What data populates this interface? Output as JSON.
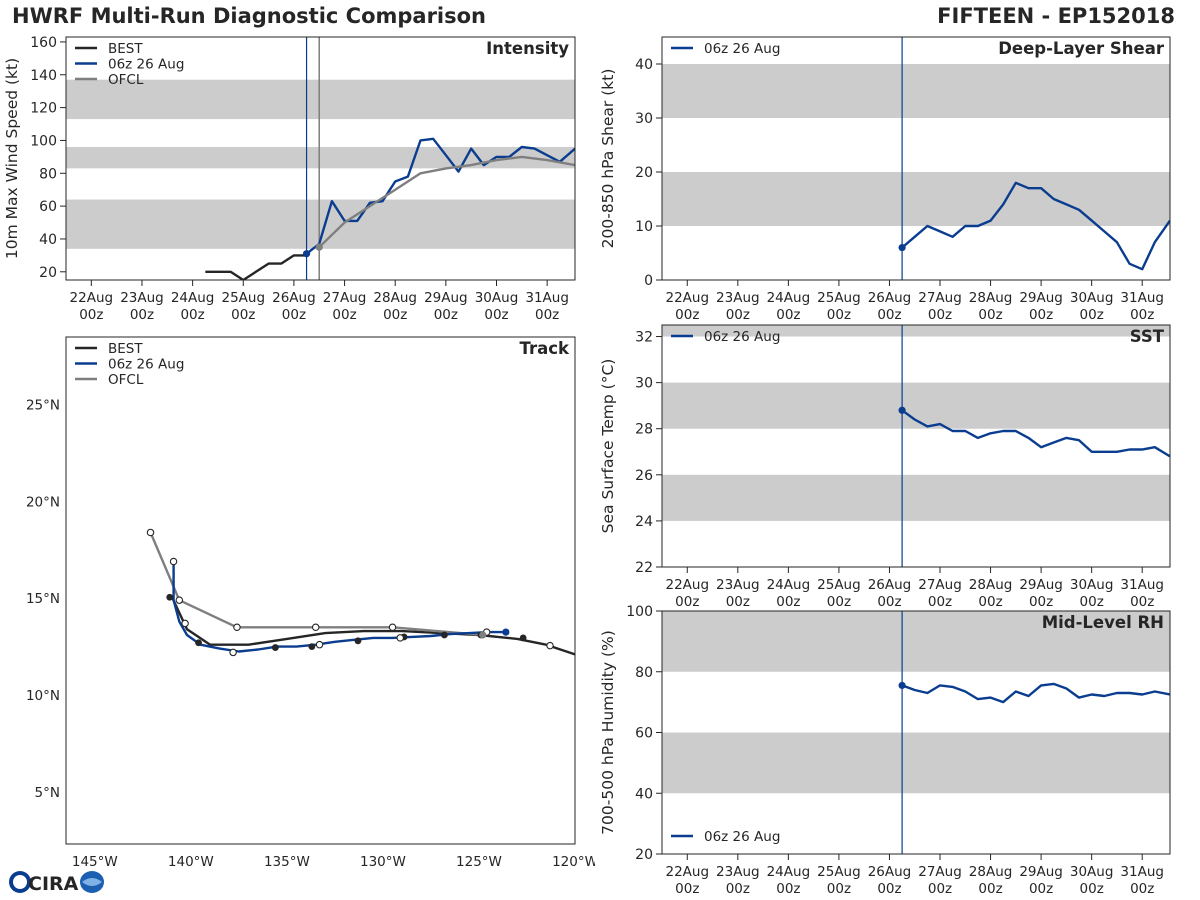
{
  "titles": {
    "left": "HWRF Multi-Run Diagnostic Comparison",
    "right": "FIFTEEN - EP152018"
  },
  "colors": {
    "best": "#262626",
    "hwrf": "#0a3d8f",
    "ofcl": "#7f7f7f",
    "band": "#cccccc",
    "init_line": "#0a3d8f"
  },
  "logo": {
    "text": "CIRA"
  },
  "chart_data": [
    {
      "id": "intensity",
      "type": "line",
      "title": "Intensity",
      "ylabel": "10m Max Wind Speed (kt)",
      "xlim": [
        -0.5,
        9.55
      ],
      "ylim": [
        15,
        163
      ],
      "yticks": [
        20,
        40,
        60,
        80,
        100,
        120,
        140,
        160
      ],
      "xticks": [
        0,
        1,
        2,
        3,
        4,
        5,
        6,
        7,
        8,
        9
      ],
      "xtick_labels": [
        "22Aug",
        "23Aug",
        "24Aug",
        "25Aug",
        "26Aug",
        "27Aug",
        "28Aug",
        "29Aug",
        "30Aug",
        "31Aug"
      ],
      "xtick_sublabel": "00z",
      "bands": [
        [
          34,
          64
        ],
        [
          83,
          96
        ],
        [
          113,
          137
        ]
      ],
      "init_day": 4.25,
      "ofcl_start": 4.5,
      "legend": [
        "BEST",
        "06z 26 Aug",
        "OFCL"
      ],
      "series": [
        {
          "name": "BEST",
          "x": [
            2.25,
            2.5,
            2.75,
            3.0,
            3.25,
            3.5,
            3.75,
            4.0,
            4.25
          ],
          "y": [
            20,
            20,
            20,
            15,
            20,
            25,
            25,
            30,
            30
          ]
        },
        {
          "name": "06z 26 Aug",
          "marker_first": true,
          "x": [
            4.25,
            4.5,
            4.75,
            5.0,
            5.25,
            5.5,
            5.75,
            6.0,
            6.25,
            6.5,
            6.75,
            7.0,
            7.25,
            7.5,
            7.75,
            8.0,
            8.25,
            8.5,
            8.75,
            9.0,
            9.25,
            9.55
          ],
          "y": [
            31,
            37,
            63,
            51,
            51,
            62,
            63,
            75,
            78,
            100,
            101,
            91,
            81,
            95,
            85,
            90,
            90,
            96,
            95,
            91,
            87,
            95
          ]
        },
        {
          "name": "OFCL",
          "marker_first": true,
          "x": [
            4.5,
            5.0,
            5.5,
            6.0,
            6.5,
            7.0,
            7.5,
            8.0,
            8.5,
            9.0,
            9.55
          ],
          "y": [
            35,
            50,
            60,
            70,
            80,
            83,
            85,
            88,
            90,
            88,
            85
          ]
        }
      ]
    },
    {
      "id": "shear",
      "type": "line",
      "title": "Deep-Layer Shear",
      "ylabel": "200-850 hPa Shear (kt)",
      "xlim": [
        -0.5,
        9.55
      ],
      "ylim": [
        0,
        45
      ],
      "yticks": [
        0,
        10,
        20,
        30,
        40
      ],
      "xticks": [
        0,
        1,
        2,
        3,
        4,
        5,
        6,
        7,
        8,
        9
      ],
      "xtick_labels": [
        "22Aug",
        "23Aug",
        "24Aug",
        "25Aug",
        "26Aug",
        "27Aug",
        "28Aug",
        "29Aug",
        "30Aug",
        "31Aug"
      ],
      "xtick_sublabel": "00z",
      "bands": [
        [
          10,
          20
        ],
        [
          30,
          40
        ]
      ],
      "init_day": 4.25,
      "legend": [
        "06z 26 Aug"
      ],
      "series": [
        {
          "name": "06z 26 Aug",
          "marker_first": true,
          "x": [
            4.25,
            4.5,
            4.75,
            5.0,
            5.25,
            5.5,
            5.75,
            6.0,
            6.25,
            6.5,
            6.75,
            7.0,
            7.25,
            7.5,
            7.75,
            8.0,
            8.25,
            8.5,
            8.75,
            9.0,
            9.25,
            9.55
          ],
          "y": [
            6,
            8,
            10,
            9,
            8,
            10,
            10,
            11,
            14,
            18,
            17,
            17,
            15,
            14,
            13,
            11,
            9,
            7,
            3,
            2,
            7,
            11
          ]
        }
      ]
    },
    {
      "id": "sst",
      "type": "line",
      "title": "SST",
      "ylabel": "Sea Surface Temp (°C)",
      "xlim": [
        -0.5,
        9.55
      ],
      "ylim": [
        22,
        32.5
      ],
      "yticks": [
        22,
        24,
        26,
        28,
        30,
        32
      ],
      "xticks": [
        0,
        1,
        2,
        3,
        4,
        5,
        6,
        7,
        8,
        9
      ],
      "xtick_labels": [
        "22Aug",
        "23Aug",
        "24Aug",
        "25Aug",
        "26Aug",
        "27Aug",
        "28Aug",
        "29Aug",
        "30Aug",
        "31Aug"
      ],
      "xtick_sublabel": "00z",
      "bands": [
        [
          24,
          26
        ],
        [
          28,
          30
        ],
        [
          32,
          34
        ]
      ],
      "init_day": 4.25,
      "legend": [
        "06z 26 Aug"
      ],
      "series": [
        {
          "name": "06z 26 Aug",
          "marker_first": true,
          "x": [
            4.25,
            4.5,
            4.75,
            5.0,
            5.25,
            5.5,
            5.75,
            6.0,
            6.25,
            6.5,
            6.75,
            7.0,
            7.25,
            7.5,
            7.75,
            8.0,
            8.25,
            8.5,
            8.75,
            9.0,
            9.25,
            9.55
          ],
          "y": [
            28.8,
            28.4,
            28.1,
            28.2,
            27.9,
            27.9,
            27.6,
            27.8,
            27.9,
            27.9,
            27.6,
            27.2,
            27.4,
            27.6,
            27.5,
            27.0,
            27.0,
            27.0,
            27.1,
            27.1,
            27.2,
            26.8
          ]
        }
      ]
    },
    {
      "id": "rh",
      "type": "line",
      "title": "Mid-Level RH",
      "ylabel": "700-500 hPa Humidity (%)",
      "xlim": [
        -0.5,
        9.55
      ],
      "ylim": [
        20,
        100
      ],
      "yticks": [
        20,
        40,
        60,
        80,
        100
      ],
      "xticks": [
        0,
        1,
        2,
        3,
        4,
        5,
        6,
        7,
        8,
        9
      ],
      "xtick_labels": [
        "22Aug",
        "23Aug",
        "24Aug",
        "25Aug",
        "26Aug",
        "27Aug",
        "28Aug",
        "29Aug",
        "30Aug",
        "31Aug"
      ],
      "xtick_sublabel": "00z",
      "bands": [
        [
          40,
          60
        ],
        [
          80,
          100
        ]
      ],
      "init_day": 4.25,
      "legend": [
        "06z 26 Aug"
      ],
      "legend_position": "bottom-left",
      "series": [
        {
          "name": "06z 26 Aug",
          "marker_first": true,
          "x": [
            4.25,
            4.5,
            4.75,
            5.0,
            5.25,
            5.5,
            5.75,
            6.0,
            6.25,
            6.5,
            6.75,
            7.0,
            7.25,
            7.5,
            7.75,
            8.0,
            8.25,
            8.5,
            8.75,
            9.0,
            9.25,
            9.55
          ],
          "y": [
            75.5,
            74,
            73,
            75.5,
            75,
            73.5,
            71,
            71.5,
            70,
            73.5,
            72,
            75.5,
            76,
            74.5,
            71.5,
            72.5,
            72,
            73,
            73,
            72.5,
            73.5,
            72.5
          ]
        }
      ]
    },
    {
      "id": "track",
      "type": "scatter",
      "title": "Track",
      "xlabel_unit": "W",
      "ylabel_unit": "N",
      "xlim": [
        -146.5,
        -120
      ],
      "ylim": [
        2.3,
        28.5
      ],
      "xticks": [
        -145,
        -140,
        -135,
        -130,
        -125,
        -120
      ],
      "xtick_labels": [
        "145°W",
        "140°W",
        "135°W",
        "130°W",
        "125°W",
        "120°W"
      ],
      "yticks": [
        5,
        10,
        15,
        20,
        25
      ],
      "ytick_labels": [
        "5°N",
        "10°N",
        "15°N",
        "20°N",
        "25°N"
      ],
      "legend": [
        "BEST",
        "06z 26 Aug",
        "OFCL"
      ],
      "series": [
        {
          "name": "BEST",
          "lon": [
            -120,
            -121.5,
            -123,
            -125,
            -127,
            -129,
            -131,
            -133,
            -135,
            -137,
            -139,
            -140.2,
            -141.0
          ],
          "lat": [
            12.1,
            12.6,
            12.9,
            13.1,
            13.2,
            13.3,
            13.3,
            13.2,
            12.9,
            12.6,
            12.6,
            13.4,
            15.1
          ],
          "dots_black": [
            [
              -122.7,
              12.95
            ],
            [
              -124.9,
              13.1
            ],
            [
              -126.8,
              13.1
            ],
            [
              -128.9,
              13.0
            ],
            [
              -131.3,
              12.8
            ],
            [
              -133.7,
              12.5
            ],
            [
              -135.6,
              12.45
            ],
            [
              -139.6,
              12.7
            ],
            [
              -141.1,
              15.05
            ]
          ],
          "dots_open": [
            [
              -121.3,
              12.55
            ]
          ]
        },
        {
          "name": "06z 26 Aug",
          "lon": [
            -123.6,
            -124.5,
            -125.5,
            -126.5,
            -127.5,
            -128.5,
            -129.5,
            -130.5,
            -131.5,
            -132.5,
            -133.5,
            -134.5,
            -135.5,
            -136.5,
            -137.5,
            -138.5,
            -139.5,
            -140.2,
            -140.6,
            -140.9,
            -140.9
          ],
          "lat": [
            13.25,
            13.25,
            13.2,
            13.15,
            13.05,
            13.0,
            12.95,
            12.95,
            12.85,
            12.75,
            12.6,
            12.5,
            12.5,
            12.35,
            12.25,
            12.4,
            12.6,
            13.1,
            13.8,
            14.9,
            16.9
          ],
          "dots_open": [
            [
              -124.6,
              13.25
            ],
            [
              -129.1,
              12.95
            ],
            [
              -133.3,
              12.6
            ],
            [
              -137.8,
              12.2
            ],
            [
              -140.3,
              13.7
            ],
            [
              -140.9,
              16.9
            ]
          ],
          "dots_blue": [
            [
              -123.6,
              13.25
            ]
          ]
        },
        {
          "name": "OFCL",
          "lon": [
            -124.8,
            -129.5,
            -133.5,
            -137.6,
            -140.6,
            -142.1
          ],
          "lat": [
            13.1,
            13.5,
            13.5,
            13.5,
            14.9,
            18.4
          ],
          "dots_open": [
            [
              -129.5,
              13.5
            ],
            [
              -133.5,
              13.5
            ],
            [
              -137.6,
              13.5
            ],
            [
              -140.6,
              14.9
            ],
            [
              -142.1,
              18.4
            ]
          ],
          "dots_gray": [
            [
              -124.8,
              13.1
            ]
          ]
        }
      ]
    }
  ]
}
